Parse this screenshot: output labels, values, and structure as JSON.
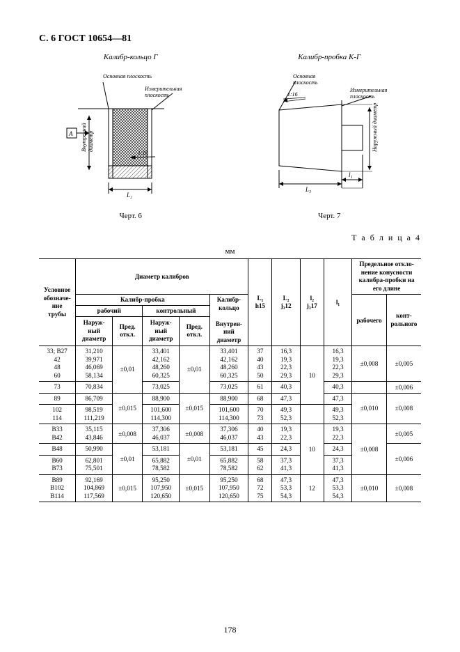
{
  "header": "С. 6 ГОСТ 10654—81",
  "fig_left_title": "Калибр-кольцо Г",
  "fig_right_title": "Калибр-пробка К-Г",
  "fig_left_cap": "Черт. 6",
  "fig_right_cap": "Черт. 7",
  "table_label": "Т а б л и ц а  4",
  "mm": "мм",
  "page_number": "178",
  "svg_left": {
    "osnov": "Основная плоскость",
    "izmer1": "Измерительная",
    "izmer2": "плоскость",
    "vnutr1": "Внутренний",
    "vnutr2": "диаметр",
    "A": "А",
    "slope": "1:16",
    "L2": "L₂"
  },
  "svg_right": {
    "osnov": "Основная",
    "osnov2": "плоскость",
    "slope": "1:16",
    "izmer1": "Измерительная",
    "izmer2": "плоскость",
    "nar1": "Наружный диаметр",
    "L3": "L₃",
    "l1": "l₁"
  },
  "th": {
    "usl1": "Условное",
    "usl2": "обозначе-",
    "usl3": "ние",
    "usl4": "трубы",
    "diam": "Диаметр калибров",
    "probka": "Калибр-пробка",
    "kolco1": "Калибр-",
    "kolco2": "кольцо",
    "rab": "рабочий",
    "kontr": "контрольный",
    "nar1": "Наруж-",
    "nar2": "ный",
    "nar3": "диаметр",
    "pred1": "Пред.",
    "pred2": "откл.",
    "vnutr1": "Внутрен-",
    "vnutr2": "ний",
    "vnutr3": "диаметр",
    "L1a": "L₁",
    "L1b": "h15",
    "L2a": "L₂",
    "L2b": "j₃12",
    "l2a": "l₂",
    "l2b": "j₃17",
    "l1": "l₁",
    "dev1": "Предельное откло-",
    "dev2": "нение конусности",
    "dev3": "калибра-пробки на",
    "dev4": "его длине",
    "rabo": "рабочего",
    "kont1": "конт-",
    "kont2": "рольного"
  },
  "rows": [
    {
      "usl": [
        "33; В27",
        "42",
        "48",
        "60"
      ],
      "nd1": [
        "31,210",
        "39,971",
        "46,069",
        "58,134"
      ],
      "p1": "±0,01",
      "nd2": [
        "33,401",
        "42,162",
        "48,260",
        "60,325"
      ],
      "p2": "±0,01",
      "vd": [
        "33,401",
        "42,162",
        "48,260",
        "60,325"
      ],
      "L1": [
        "37",
        "40",
        "43",
        "50"
      ],
      "L2": [
        "16,3",
        "19,3",
        "22,3",
        "29,3"
      ],
      "l2": "10",
      "l1": [
        "16,3",
        "19,3",
        "22,3",
        "29,3"
      ],
      "d1": "±0,008",
      "d2": "±0,005",
      "merge_p1": 2,
      "merge_p2": 2,
      "merge_l2": 3,
      "merge_d1": 1,
      "merge_d2": 1
    },
    {
      "usl": [
        "73"
      ],
      "nd1": [
        "70,834"
      ],
      "p1": "",
      "nd2": [
        "73,025"
      ],
      "p2": "",
      "vd": [
        "73,025"
      ],
      "L1": [
        "61"
      ],
      "L2": [
        "40,3"
      ],
      "l2": "",
      "l1": [
        "40,3"
      ],
      "d1": "",
      "d2": "±0,006"
    },
    {
      "usl": [
        "89"
      ],
      "nd1": [
        "86,709"
      ],
      "p1": "±0,015",
      "nd2": [
        "88,900"
      ],
      "p2": "±0,015",
      "vd": [
        "88,900"
      ],
      "L1": [
        "68"
      ],
      "L2": [
        "47,3"
      ],
      "l2": "12",
      "l1": [
        "47,3"
      ],
      "d1": "±0,010",
      "d2": "±0,008",
      "merge_p1": 2,
      "merge_p2": 2,
      "merge_l2": 2,
      "merge_d1": 2,
      "merge_d2": 2
    },
    {
      "usl": [
        "102",
        "114"
      ],
      "nd1": [
        "98,519",
        "111,219"
      ],
      "p1": "",
      "nd2": [
        "101,600",
        "114,300"
      ],
      "p2": "",
      "vd": [
        "101,600",
        "114,300"
      ],
      "L1": [
        "70",
        "73"
      ],
      "L2": [
        "49,3",
        "52,3"
      ],
      "l2": "",
      "l1": [
        "49,3",
        "52,3"
      ],
      "d1": "",
      "d2": ""
    },
    {
      "usl": [
        "В33",
        "В42"
      ],
      "nd1": [
        "35,115",
        "43,846"
      ],
      "p1": "±0,008",
      "nd2": [
        "37,306",
        "46,037"
      ],
      "p2": "±0,008",
      "vd": [
        "37,306",
        "46,037"
      ],
      "L1": [
        "40",
        "43"
      ],
      "L2": [
        "19,3",
        "22,3"
      ],
      "l2": "10",
      "l1": [
        "19,3",
        "22,3"
      ],
      "d1": "±0,008",
      "d2": "±0,005",
      "merge_l2": 3,
      "merge_d1": 3
    },
    {
      "usl": [
        "В48"
      ],
      "nd1": [
        "50,990"
      ],
      "p1": "±0,01",
      "nd2": [
        "53,181"
      ],
      "p2": "±0,01",
      "vd": [
        "53,181"
      ],
      "L1": [
        "45"
      ],
      "L2": [
        "24,3"
      ],
      "l2": "",
      "l1": [
        "24,3"
      ],
      "d1": "",
      "d2": "±0,006",
      "merge_p1": 2,
      "merge_p2": 2,
      "merge_d2": 2
    },
    {
      "usl": [
        "В60",
        "В73"
      ],
      "nd1": [
        "62,801",
        "75,501"
      ],
      "p1": "",
      "nd2": [
        "65,882",
        "78,582"
      ],
      "p2": "",
      "vd": [
        "65,882",
        "78,582"
      ],
      "L1": [
        "58",
        "62"
      ],
      "L2": [
        "37,3",
        "41,3"
      ],
      "l2": "",
      "l1": [
        "37,3",
        "41,3"
      ],
      "d1": "",
      "d2": ""
    },
    {
      "usl": [
        "В89",
        "В102",
        "В114"
      ],
      "nd1": [
        "92,169",
        "104,869",
        "117,569"
      ],
      "p1": "±0,015",
      "nd2": [
        "95,250",
        "107,950",
        "120,650"
      ],
      "p2": "±0,015",
      "vd": [
        "95,250",
        "107,950",
        "120,650"
      ],
      "L1": [
        "68",
        "72",
        "75"
      ],
      "L2": [
        "47,3",
        "53,3",
        "54,3"
      ],
      "l2": "12",
      "l1": [
        "47,3",
        "53,3",
        "54,3"
      ],
      "d1": "±0,010",
      "d2": "±0,008"
    }
  ]
}
